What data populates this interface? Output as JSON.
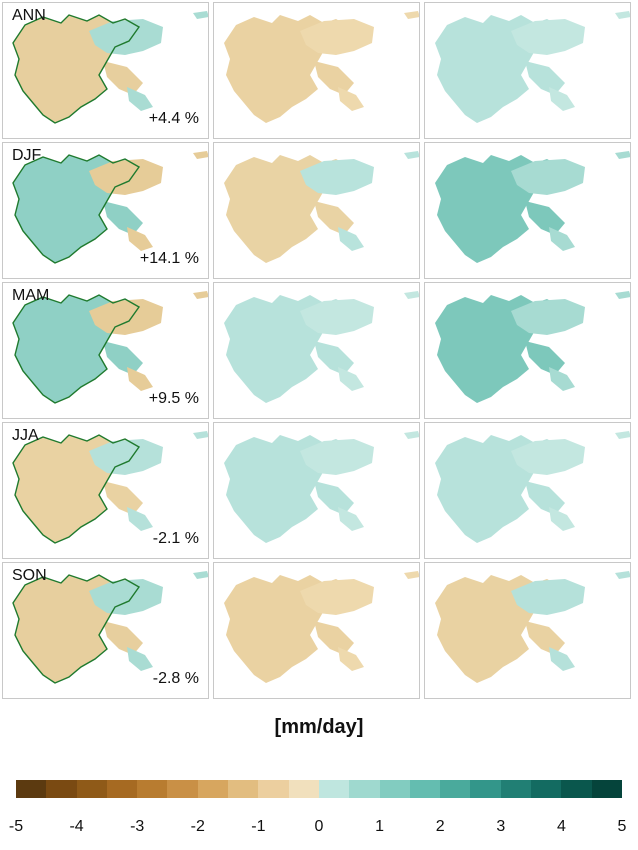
{
  "units_label": "[mm/day]",
  "rows": [
    {
      "season": "ANN",
      "change": "+4.4 %",
      "tints": [
        "mix-green",
        "tan",
        "teal"
      ]
    },
    {
      "season": "DJF",
      "change": "+14.1 %",
      "tints": [
        "teal-green",
        "tan-teal",
        "teal-strong"
      ]
    },
    {
      "season": "MAM",
      "change": "+9.5 %",
      "tints": [
        "teal-green",
        "teal",
        "teal-strong"
      ]
    },
    {
      "season": "JJA",
      "change": "-2.1 %",
      "tints": [
        "mix",
        "teal",
        "teal"
      ]
    },
    {
      "season": "SON",
      "change": "-2.8 %",
      "tints": [
        "mix-green",
        "tan",
        "mix"
      ]
    }
  ],
  "colorbar": {
    "colors": [
      "#5c3a10",
      "#7a4a12",
      "#8f5a18",
      "#a66a22",
      "#b87c30",
      "#c99046",
      "#d7a65f",
      "#e2bd80",
      "#eccf9f",
      "#f1e0bd",
      "#bfe6df",
      "#9fd9cf",
      "#82ccc0",
      "#64bdb0",
      "#4aaa9c",
      "#33968a",
      "#217f74",
      "#136b61",
      "#0a574d",
      "#05443b"
    ],
    "ticks": [
      "-5",
      "-4",
      "-3",
      "-2",
      "-1",
      "0",
      "1",
      "2",
      "3",
      "4",
      "5"
    ]
  }
}
